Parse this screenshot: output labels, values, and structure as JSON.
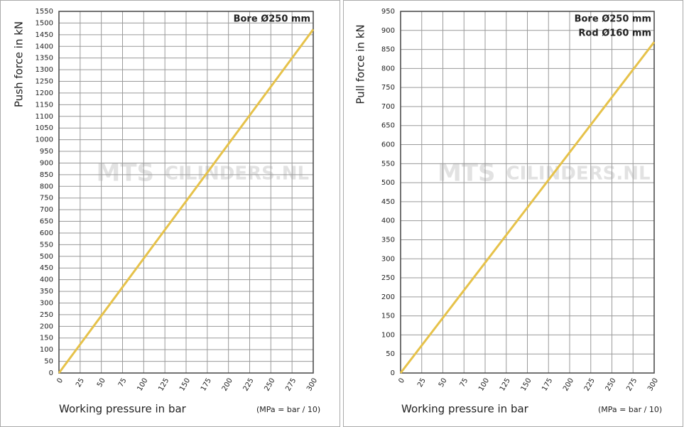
{
  "watermark": [
    "MTS",
    "CILINDERS.NL"
  ],
  "chart_data": [
    {
      "type": "line",
      "ylabel": "Push force in kN",
      "xlabel": "Working pressure in bar",
      "xlabel_note": "(MPa = bar / 10)",
      "annotations": [
        "Bore Ø250 mm"
      ],
      "x": [
        0,
        300
      ],
      "series": [
        {
          "name": "Push force",
          "color": "#e6c24a",
          "values": [
            0,
            1472.6
          ]
        }
      ],
      "xlim": [
        0,
        300
      ],
      "xticks": [
        0,
        25,
        50,
        75,
        100,
        125,
        150,
        175,
        200,
        225,
        250,
        275,
        300
      ],
      "ylim": [
        0,
        1550
      ],
      "yticks": [
        0,
        50,
        100,
        150,
        200,
        250,
        300,
        350,
        400,
        450,
        500,
        550,
        600,
        650,
        700,
        750,
        800,
        850,
        900,
        950,
        1000,
        1050,
        1100,
        1150,
        1200,
        1250,
        1300,
        1350,
        1400,
        1450,
        1500,
        1550
      ],
      "grid": true
    },
    {
      "type": "line",
      "ylabel": "Pull force in kN",
      "xlabel": "Working pressure in bar",
      "xlabel_note": "(MPa = bar / 10)",
      "annotations": [
        "Bore Ø250 mm",
        "Rod Ø160 mm"
      ],
      "x": [
        0,
        300
      ],
      "series": [
        {
          "name": "Pull force",
          "color": "#e6c24a",
          "values": [
            0,
            869.4
          ]
        }
      ],
      "xlim": [
        0,
        300
      ],
      "xticks": [
        0,
        25,
        50,
        75,
        100,
        125,
        150,
        175,
        200,
        225,
        250,
        275,
        300
      ],
      "ylim": [
        0,
        950
      ],
      "yticks": [
        0,
        50,
        100,
        150,
        200,
        250,
        300,
        350,
        400,
        450,
        500,
        550,
        600,
        650,
        700,
        750,
        800,
        850,
        900,
        950
      ],
      "grid": true
    }
  ]
}
